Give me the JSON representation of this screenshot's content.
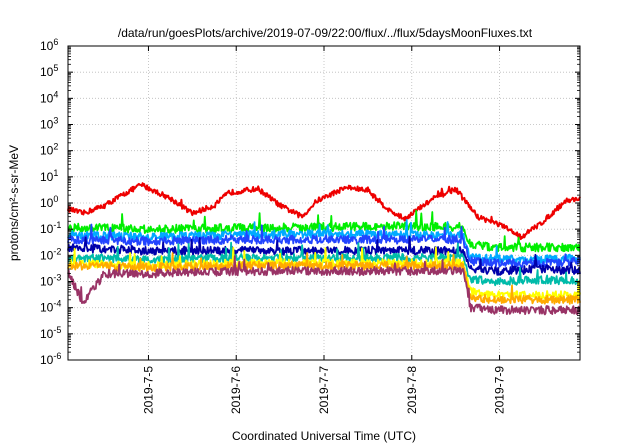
{
  "chart_data": {
    "type": "line",
    "title": "/data/run/goesPlots/archive/2019-07-09/22:00/flux/../flux/5daysMoonFluxes.txt",
    "xlabel": "Coordinated Universal Time (UTC)",
    "ylabel": "protons/cm²-s-sr-MeV",
    "y_scale": "log",
    "ylim": [
      1e-06,
      1000000.0
    ],
    "y_ticks": [
      {
        "label": "10",
        "exp": "-6",
        "value": 1e-06
      },
      {
        "label": "10",
        "exp": "-5",
        "value": 1e-05
      },
      {
        "label": "10",
        "exp": "-4",
        "value": 0.0001
      },
      {
        "label": "10",
        "exp": "-3",
        "value": 0.001
      },
      {
        "label": "10",
        "exp": "-2",
        "value": 0.01
      },
      {
        "label": "10",
        "exp": "-1",
        "value": 0.1
      },
      {
        "label": "10",
        "exp": "0",
        "value": 1
      },
      {
        "label": "10",
        "exp": "1",
        "value": 10
      },
      {
        "label": "10",
        "exp": "2",
        "value": 100
      },
      {
        "label": "10",
        "exp": "3",
        "value": 1000
      },
      {
        "label": "10",
        "exp": "4",
        "value": 10000
      },
      {
        "label": "10",
        "exp": "5",
        "value": 100000
      },
      {
        "label": "10",
        "exp": "6",
        "value": 1000000
      }
    ],
    "x_range": [
      "2019-07-04 02:00",
      "2019-07-09 22:00"
    ],
    "x_ticks": [
      "2019-7-5",
      "2019-7-6",
      "2019-7-7",
      "2019-7-8",
      "2019-7-9"
    ],
    "grid": true,
    "legend": "none",
    "series": [
      {
        "color": "#ee0000",
        "x": [
          "2019-07-04 02:00",
          "2019-07-04 06:00",
          "2019-07-04 12:00",
          "2019-07-04 18:00",
          "2019-07-04 22:00",
          "2019-07-05 06:00",
          "2019-07-05 12:00",
          "2019-07-05 18:00",
          "2019-07-05 22:00",
          "2019-07-06 06:00",
          "2019-07-06 12:00",
          "2019-07-06 18:00",
          "2019-07-06 22:00",
          "2019-07-07 06:00",
          "2019-07-07 12:00",
          "2019-07-07 18:00",
          "2019-07-07 22:00",
          "2019-07-08 06:00",
          "2019-07-08 12:00",
          "2019-07-08 18:00",
          "2019-07-09 00:00",
          "2019-07-09 06:00",
          "2019-07-09 12:00",
          "2019-07-09 18:00",
          "2019-07-09 22:00"
        ],
        "values": [
          0.6,
          0.4,
          0.8,
          2.5,
          5,
          1.5,
          0.4,
          0.8,
          2.5,
          3.5,
          0.8,
          0.3,
          1.2,
          4,
          3,
          0.5,
          0.25,
          1.5,
          3.5,
          0.3,
          0.15,
          0.05,
          0.2,
          1.2,
          1.5
        ]
      },
      {
        "color": "#00ee00",
        "x": [
          "2019-07-04 02:00",
          "2019-07-05 00:00",
          "2019-07-06 00:00",
          "2019-07-07 00:00",
          "2019-07-08 00:00",
          "2019-07-08 14:00",
          "2019-07-08 16:00",
          "2019-07-09 00:00",
          "2019-07-09 12:00",
          "2019-07-09 22:00"
        ],
        "values": [
          0.12,
          0.1,
          0.11,
          0.12,
          0.13,
          0.12,
          0.025,
          0.02,
          0.02,
          0.02
        ]
      },
      {
        "color": "#00aaff",
        "x": [
          "2019-07-04 02:00",
          "2019-07-05 00:00",
          "2019-07-06 00:00",
          "2019-07-07 00:00",
          "2019-07-08 00:00",
          "2019-07-08 14:00",
          "2019-07-08 16:00",
          "2019-07-09 00:00",
          "2019-07-09 12:00",
          "2019-07-09 22:00"
        ],
        "values": [
          0.06,
          0.05,
          0.06,
          0.07,
          0.06,
          0.06,
          0.008,
          0.007,
          0.007,
          0.008
        ]
      },
      {
        "color": "#2244ff",
        "x": [
          "2019-07-04 02:00",
          "2019-07-05 00:00",
          "2019-07-06 00:00",
          "2019-07-07 00:00",
          "2019-07-08 00:00",
          "2019-07-08 14:00",
          "2019-07-08 16:00",
          "2019-07-09 00:00",
          "2019-07-09 12:00",
          "2019-07-09 22:00"
        ],
        "values": [
          0.04,
          0.035,
          0.04,
          0.04,
          0.04,
          0.04,
          0.006,
          0.005,
          0.005,
          0.006
        ]
      },
      {
        "color": "#0000aa",
        "x": [
          "2019-07-04 02:00",
          "2019-07-05 00:00",
          "2019-07-06 00:00",
          "2019-07-07 00:00",
          "2019-07-08 00:00",
          "2019-07-08 14:00",
          "2019-07-08 16:00",
          "2019-07-09 00:00",
          "2019-07-09 12:00",
          "2019-07-09 22:00"
        ],
        "values": [
          0.02,
          0.015,
          0.015,
          0.015,
          0.015,
          0.015,
          0.003,
          0.0025,
          0.003,
          0.0025
        ]
      },
      {
        "color": "#00bbaa",
        "x": [
          "2019-07-04 02:00",
          "2019-07-05 00:00",
          "2019-07-06 00:00",
          "2019-07-07 00:00",
          "2019-07-08 00:00",
          "2019-07-08 14:00",
          "2019-07-08 16:00",
          "2019-07-09 00:00",
          "2019-07-09 12:00",
          "2019-07-09 22:00"
        ],
        "values": [
          0.008,
          0.007,
          0.008,
          0.008,
          0.008,
          0.008,
          0.0012,
          0.001,
          0.0012,
          0.001
        ]
      },
      {
        "color": "#ffff00",
        "x": [
          "2019-07-04 02:00",
          "2019-07-05 00:00",
          "2019-07-06 00:00",
          "2019-07-07 00:00",
          "2019-07-08 00:00",
          "2019-07-08 14:00",
          "2019-07-08 16:00",
          "2019-07-09 00:00",
          "2019-07-09 12:00",
          "2019-07-09 22:00"
        ],
        "values": [
          0.005,
          0.004,
          0.005,
          0.005,
          0.005,
          0.005,
          0.0004,
          0.0003,
          0.0003,
          0.0003
        ]
      },
      {
        "color": "#ffaa00",
        "x": [
          "2019-07-04 02:00",
          "2019-07-05 00:00",
          "2019-07-06 00:00",
          "2019-07-07 00:00",
          "2019-07-08 00:00",
          "2019-07-08 14:00",
          "2019-07-08 16:00",
          "2019-07-09 00:00",
          "2019-07-09 12:00",
          "2019-07-09 22:00"
        ],
        "values": [
          0.004,
          0.0035,
          0.004,
          0.004,
          0.004,
          0.004,
          0.00025,
          0.0002,
          0.0002,
          0.0002
        ]
      },
      {
        "color": "#993366",
        "x": [
          "2019-07-04 02:00",
          "2019-07-04 06:00",
          "2019-07-04 12:00",
          "2019-07-05 00:00",
          "2019-07-06 00:00",
          "2019-07-07 00:00",
          "2019-07-08 00:00",
          "2019-07-08 14:00",
          "2019-07-08 16:00",
          "2019-07-09 00:00",
          "2019-07-09 12:00",
          "2019-07-09 22:00"
        ],
        "values": [
          0.0025,
          0.00015,
          0.002,
          0.002,
          0.0025,
          0.0025,
          0.0025,
          0.0025,
          0.0001,
          8e-05,
          8e-05,
          8e-05
        ]
      }
    ]
  }
}
